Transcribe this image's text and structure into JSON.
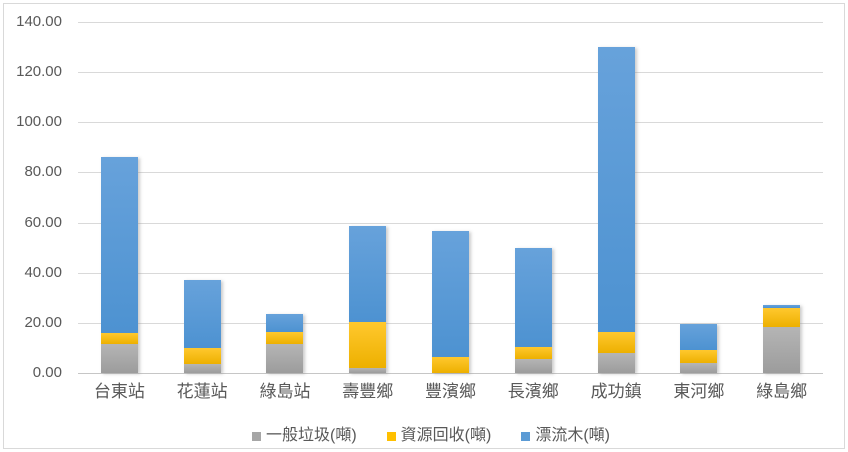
{
  "chart_data": {
    "type": "bar",
    "stacked": true,
    "title": "",
    "xlabel": "",
    "ylabel": "",
    "categories": [
      "台東站",
      "花蓮站",
      "綠島站",
      "壽豐鄉",
      "豐濱鄉",
      "長濱鄉",
      "成功鎮",
      "東河鄉",
      "綠島鄉"
    ],
    "series": [
      {
        "name": "一般垃圾(噸)",
        "color_key": "gray",
        "swatch": "#A6A6A6",
        "values": [
          11.5,
          3.5,
          11.5,
          2.0,
          0,
          5.5,
          8.0,
          4.0,
          18.5
        ]
      },
      {
        "name": "資源回收(噸)",
        "color_key": "yellow",
        "swatch": "#FFC000",
        "values": [
          4.5,
          6.5,
          4.7,
          18.5,
          6.5,
          4.8,
          8.5,
          5.0,
          7.5
        ]
      },
      {
        "name": "漂流木(噸)",
        "color_key": "blue",
        "swatch": "#5B9BD5",
        "values": [
          70.0,
          27.0,
          7.3,
          38.0,
          50.0,
          39.7,
          113.5,
          10.5,
          1.2
        ]
      }
    ],
    "totals": [
      86.0,
      37.0,
      23.5,
      58.5,
      56.5,
      50.0,
      130.0,
      19.5,
      27.2
    ],
    "ylim": [
      0,
      140
    ],
    "ytick_labels": [
      "140.00",
      "120.00",
      "100.00",
      "80.00",
      "60.00",
      "40.00",
      "20.00",
      "0.00"
    ],
    "grid": "horizontal",
    "legend_position": "bottom"
  },
  "colors": {
    "gridline": "#D9D9D9",
    "axis_line": "#C6C6C6",
    "axis_text": "#595959",
    "chart_border": "#D9D9D9",
    "bar_gray": "#A6A6A6",
    "bar_yellow": "#FFC000",
    "bar_blue": "#5B9BD5"
  }
}
